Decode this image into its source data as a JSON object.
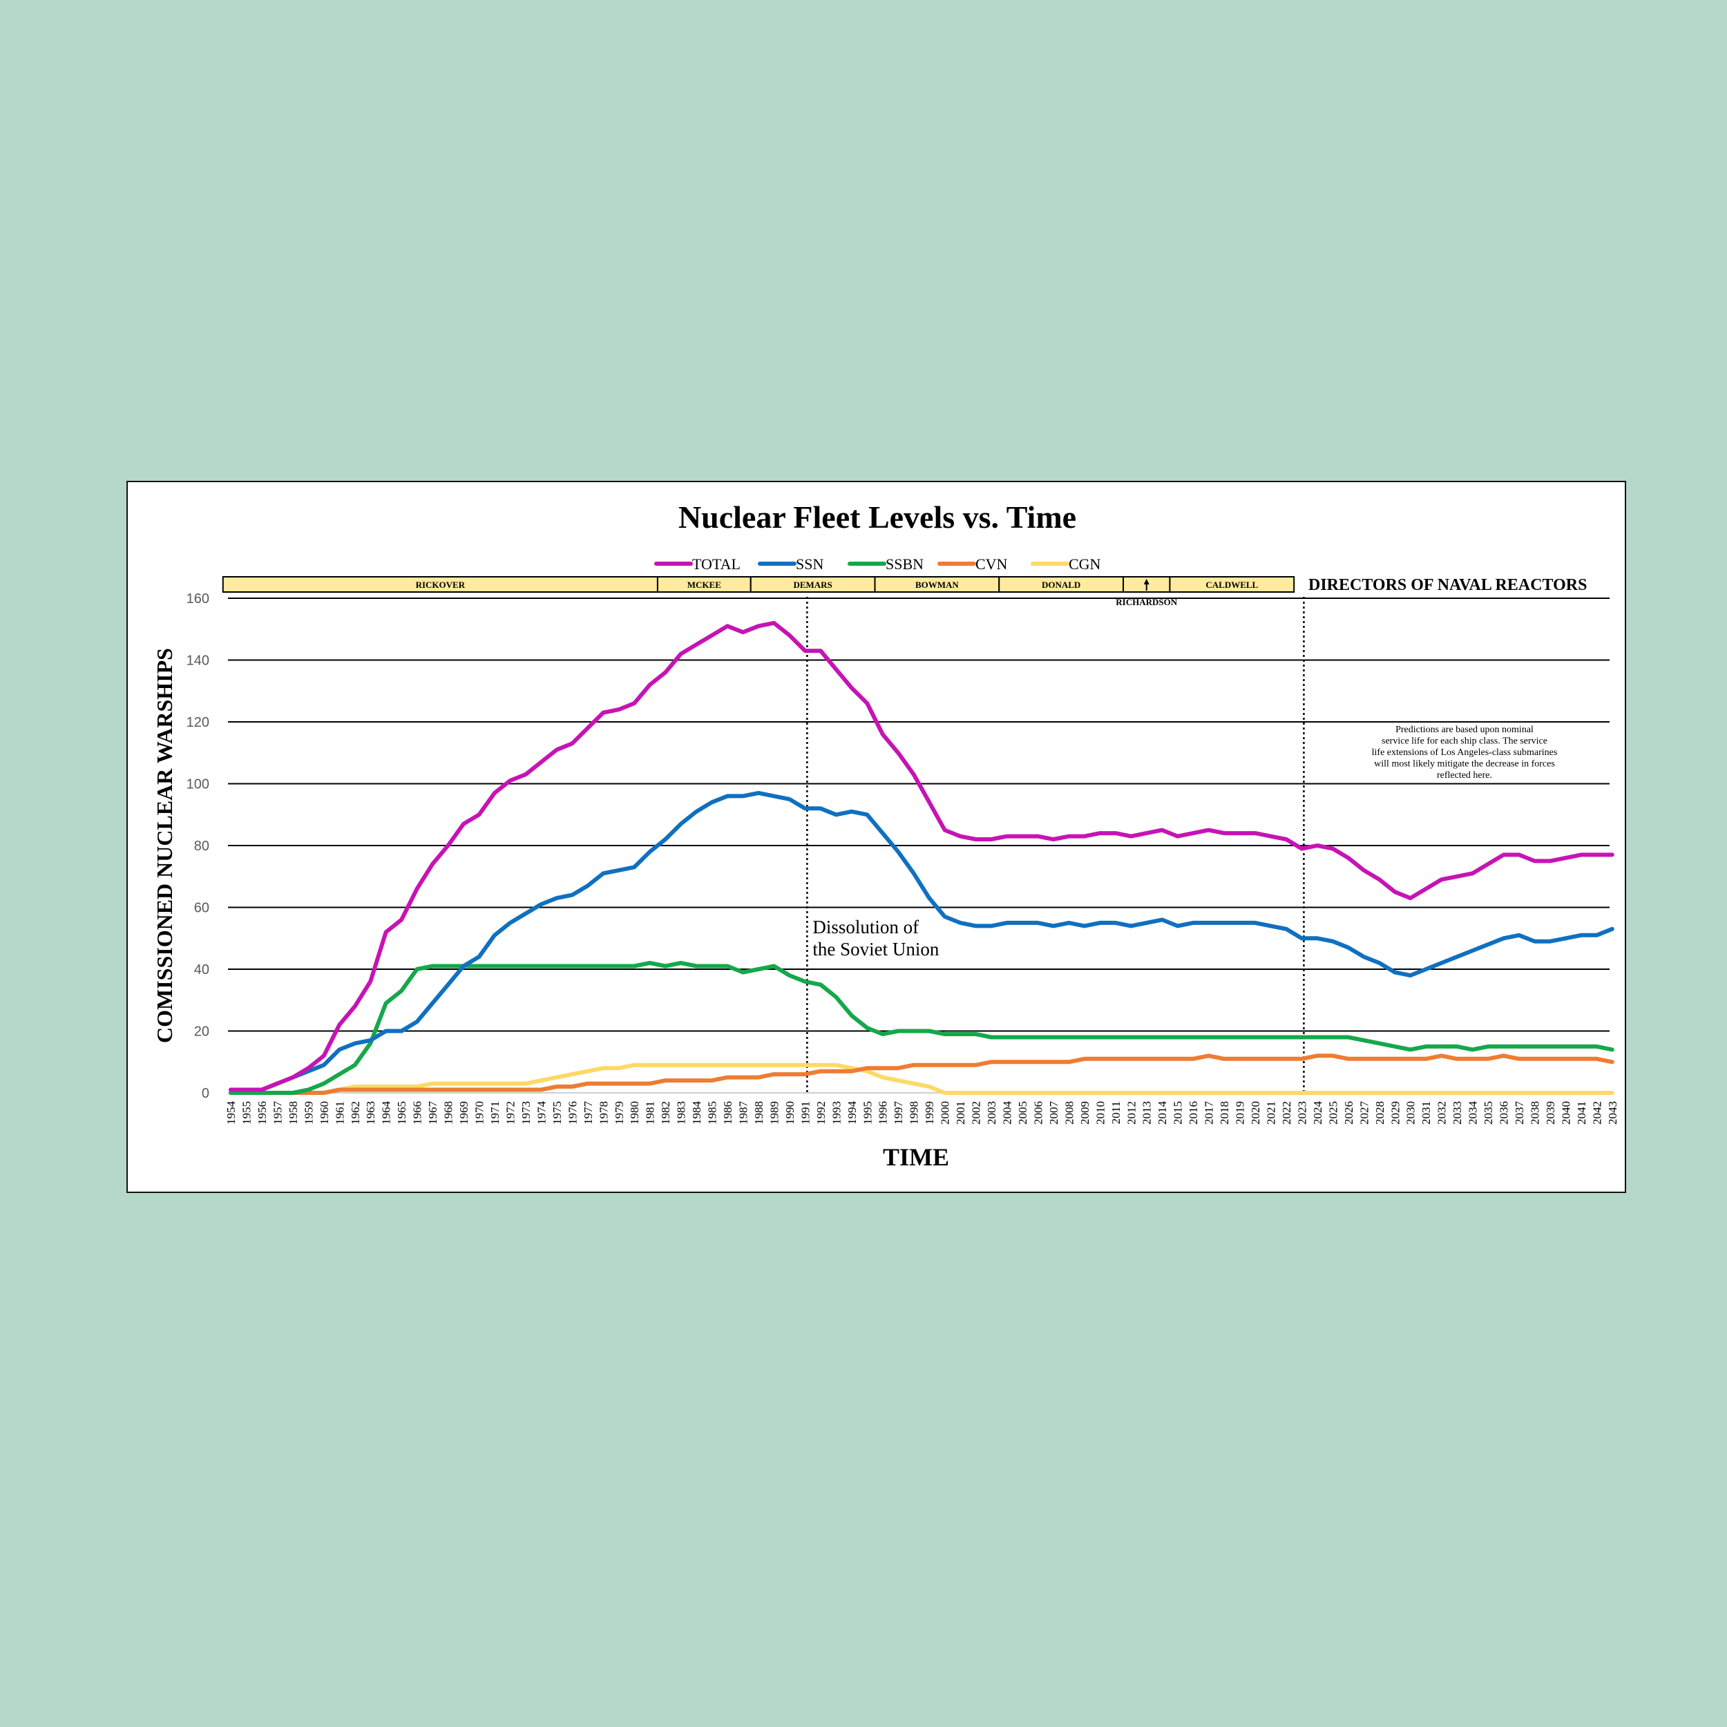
{
  "chart_data": {
    "type": "line",
    "title": "Nuclear Fleet Levels vs. Time",
    "xlabel": "TIME",
    "ylabel": "COMISSIONED NUCLEAR WARSHIPS",
    "ylim": [
      0,
      160
    ],
    "yticks": [
      0,
      20,
      40,
      60,
      80,
      100,
      120,
      140,
      160
    ],
    "grid": "horizontal",
    "legend_position": "top-center",
    "x": [
      1954,
      1955,
      1956,
      1957,
      1958,
      1959,
      1960,
      1961,
      1962,
      1963,
      1964,
      1965,
      1966,
      1967,
      1968,
      1969,
      1970,
      1971,
      1972,
      1973,
      1974,
      1975,
      1976,
      1977,
      1978,
      1979,
      1980,
      1981,
      1982,
      1983,
      1984,
      1985,
      1986,
      1987,
      1988,
      1989,
      1990,
      1991,
      1992,
      1993,
      1994,
      1995,
      1996,
      1997,
      1998,
      1999,
      2000,
      2001,
      2002,
      2003,
      2004,
      2005,
      2006,
      2007,
      2008,
      2009,
      2010,
      2011,
      2012,
      2013,
      2014,
      2015,
      2016,
      2017,
      2018,
      2019,
      2020,
      2021,
      2022,
      2023,
      2024,
      2025,
      2026,
      2027,
      2028,
      2029,
      2030,
      2031,
      2032,
      2033,
      2034,
      2035,
      2036,
      2037,
      2038,
      2039,
      2040,
      2041,
      2042,
      2043
    ],
    "series": [
      {
        "name": "TOTAL",
        "color": "#c614b4",
        "values": [
          1,
          1,
          1,
          3,
          5,
          8,
          12,
          22,
          28,
          36,
          52,
          56,
          66,
          74,
          80,
          87,
          90,
          97,
          101,
          103,
          107,
          111,
          113,
          118,
          123,
          124,
          126,
          132,
          136,
          142,
          145,
          148,
          151,
          149,
          151,
          152,
          148,
          143,
          143,
          137,
          131,
          126,
          116,
          110,
          103,
          94,
          85,
          83,
          82,
          82,
          83,
          83,
          83,
          82,
          83,
          83,
          84,
          84,
          83,
          84,
          85,
          83,
          84,
          85,
          84,
          84,
          84,
          83,
          82,
          79,
          80,
          79,
          76,
          72,
          69,
          65,
          63,
          66,
          69,
          70,
          71,
          74,
          77,
          77,
          75,
          75,
          76,
          77,
          77,
          77
        ]
      },
      {
        "name": "SSN",
        "color": "#1070c0",
        "values": [
          1,
          1,
          1,
          3,
          5,
          7,
          9,
          14,
          16,
          17,
          20,
          20,
          23,
          29,
          35,
          41,
          44,
          51,
          55,
          58,
          61,
          63,
          64,
          67,
          71,
          72,
          73,
          78,
          82,
          87,
          91,
          94,
          96,
          96,
          97,
          96,
          95,
          92,
          92,
          90,
          91,
          90,
          84,
          78,
          71,
          63,
          57,
          55,
          54,
          54,
          55,
          55,
          55,
          54,
          55,
          54,
          55,
          55,
          54,
          55,
          56,
          54,
          55,
          55,
          55,
          55,
          55,
          54,
          53,
          50,
          50,
          49,
          47,
          44,
          42,
          39,
          38,
          40,
          42,
          44,
          46,
          48,
          50,
          51,
          49,
          49,
          50,
          51,
          51,
          53
        ]
      },
      {
        "name": "SSBN",
        "color": "#15a84a",
        "values": [
          0,
          0,
          0,
          0,
          0,
          1,
          3,
          6,
          9,
          16,
          29,
          33,
          40,
          41,
          41,
          41,
          41,
          41,
          41,
          41,
          41,
          41,
          41,
          41,
          41,
          41,
          41,
          42,
          41,
          42,
          41,
          41,
          41,
          39,
          40,
          41,
          38,
          36,
          35,
          31,
          25,
          21,
          19,
          20,
          20,
          20,
          19,
          19,
          19,
          18,
          18,
          18,
          18,
          18,
          18,
          18,
          18,
          18,
          18,
          18,
          18,
          18,
          18,
          18,
          18,
          18,
          18,
          18,
          18,
          18,
          18,
          18,
          18,
          17,
          16,
          15,
          14,
          15,
          15,
          15,
          14,
          15,
          15,
          15,
          15,
          15,
          15,
          15,
          15,
          14
        ]
      },
      {
        "name": "CVN",
        "color": "#ee7c32",
        "values": [
          0,
          0,
          0,
          0,
          0,
          0,
          0,
          1,
          1,
          1,
          1,
          1,
          1,
          1,
          1,
          1,
          1,
          1,
          1,
          1,
          1,
          2,
          2,
          3,
          3,
          3,
          3,
          3,
          4,
          4,
          4,
          4,
          5,
          5,
          5,
          6,
          6,
          6,
          7,
          7,
          7,
          8,
          8,
          8,
          9,
          9,
          9,
          9,
          9,
          10,
          10,
          10,
          10,
          10,
          10,
          11,
          11,
          11,
          11,
          11,
          11,
          11,
          11,
          12,
          11,
          11,
          11,
          11,
          11,
          11,
          12,
          12,
          11,
          11,
          11,
          11,
          11,
          11,
          12,
          11,
          11,
          11,
          12,
          11,
          11,
          11,
          11,
          11,
          11,
          10
        ]
      },
      {
        "name": "CGN",
        "color": "#ffd966",
        "values": [
          0,
          0,
          0,
          0,
          0,
          0,
          0,
          1,
          2,
          2,
          2,
          2,
          2,
          3,
          3,
          3,
          3,
          3,
          3,
          3,
          4,
          5,
          6,
          7,
          8,
          8,
          9,
          9,
          9,
          9,
          9,
          9,
          9,
          9,
          9,
          9,
          9,
          9,
          9,
          9,
          8,
          7,
          5,
          4,
          3,
          2,
          0,
          0,
          0,
          0,
          0,
          0,
          0,
          0,
          0,
          0,
          0,
          0,
          0,
          0,
          0,
          0,
          0,
          0,
          0,
          0,
          0,
          0,
          0,
          0,
          0,
          0,
          0,
          0,
          0,
          0,
          0,
          0,
          0,
          0,
          0,
          0,
          0,
          0,
          0,
          0,
          0,
          0,
          0,
          0
        ]
      }
    ],
    "directors_header": "DIRECTORS OF NAVAL REACTORS",
    "directors": [
      {
        "name": "RICKOVER",
        "start": 1954,
        "end": 1982
      },
      {
        "name": "MCKEE",
        "start": 1982,
        "end": 1988
      },
      {
        "name": "DEMARS",
        "start": 1988,
        "end": 1996
      },
      {
        "name": "BOWMAN",
        "start": 1996,
        "end": 2004
      },
      {
        "name": "DONALD",
        "start": 2004,
        "end": 2012
      },
      {
        "name": "",
        "start": 2012,
        "end": 2015
      },
      {
        "name": "CALDWELL",
        "start": 2015,
        "end": 2023
      }
    ],
    "richardson_label": "RICHARDSON",
    "richardson_year": 2013.5,
    "markers": [
      {
        "year": 1991,
        "label_line1": "Dissolution of",
        "label_line2": "the Soviet Union"
      },
      {
        "year": 2023
      }
    ],
    "prediction_note": [
      "Predictions are based upon nominal",
      "service life for each ship class. The service",
      "life extensions of Los Angeles-class submarines",
      "will most likely mitigate the decrease in forces",
      "reflected here."
    ]
  }
}
